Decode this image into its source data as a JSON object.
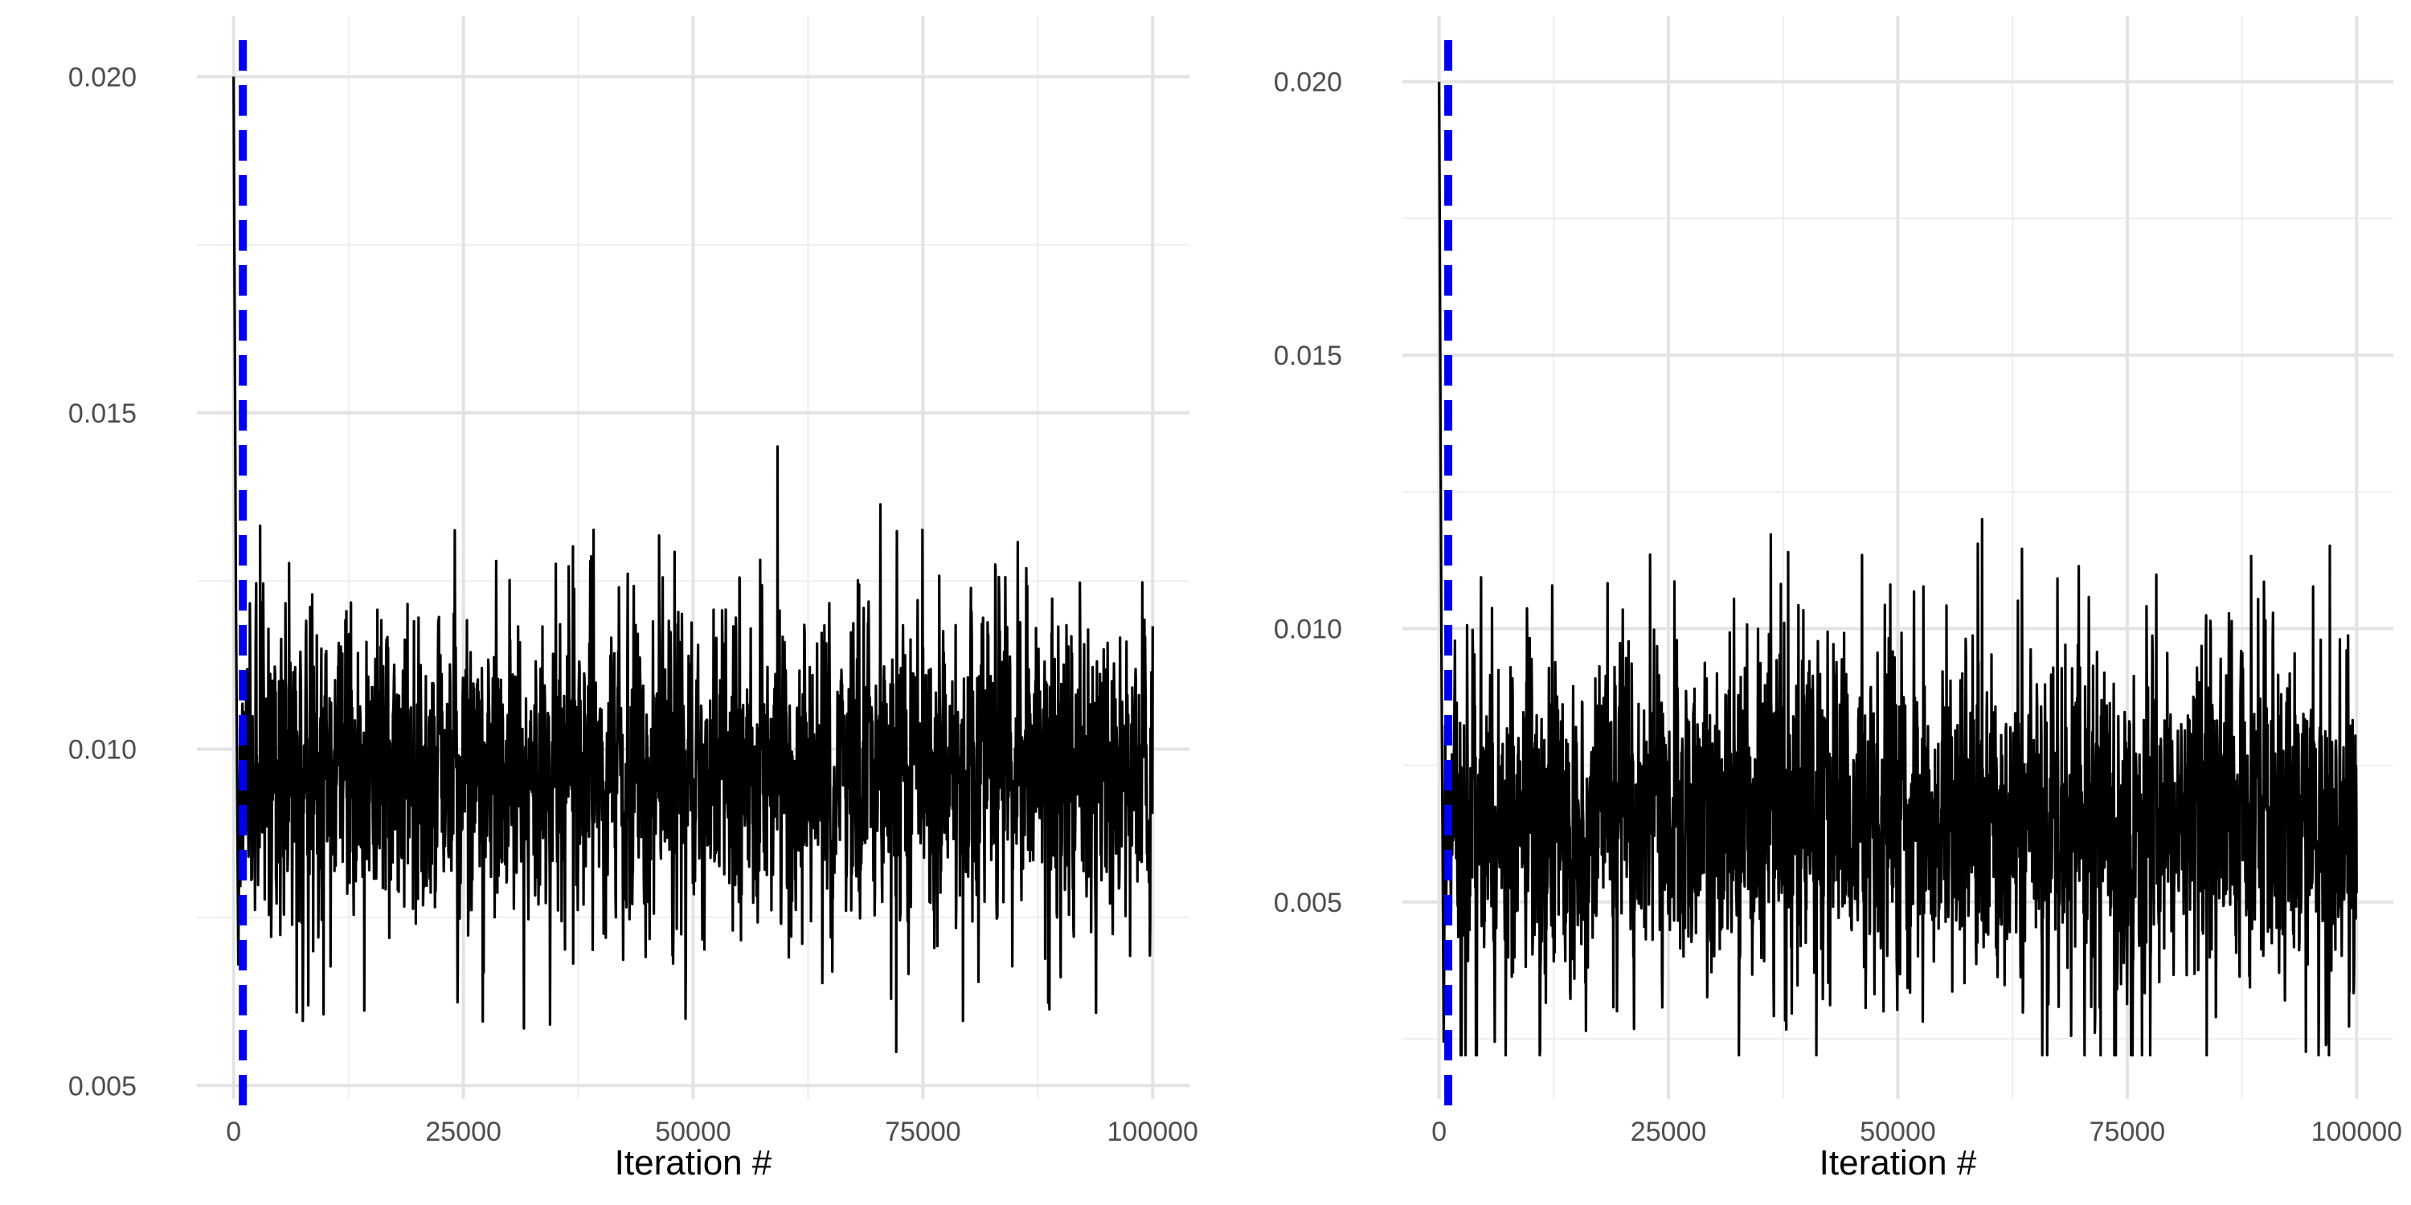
{
  "colors": {
    "background": "#ffffff",
    "grid_major": "#e3e3e3",
    "grid_minor": "#efefef",
    "trace": "#000000",
    "burnin_line": "#0000ee",
    "tick_text": "#4d4d4d",
    "axis_title": "#000000"
  },
  "chart_data": [
    {
      "type": "line",
      "xlabel": "Iteration #",
      "ylabel": "",
      "xlim": [
        -4000,
        104000
      ],
      "ylim": [
        0.0048,
        0.0209
      ],
      "x_ticks": [
        0,
        25000,
        50000,
        75000,
        100000
      ],
      "x_tick_labels": [
        "0",
        "25000",
        "50000",
        "75000",
        "100000"
      ],
      "y_ticks": [
        0.005,
        0.01,
        0.015,
        0.02
      ],
      "y_tick_labels": [
        "0.005",
        "0.010",
        "0.015",
        "0.020"
      ],
      "grid": true,
      "burnin_x": 1000,
      "series": [
        {
          "iterations": 100000,
          "start_value": 0.02,
          "mean": 0.0097,
          "typical_range": [
            0.0078,
            0.0118
          ],
          "max": 0.0145,
          "min": 0.0055
        }
      ]
    },
    {
      "type": "line",
      "xlabel": "Iteration #",
      "ylabel": "",
      "xlim": [
        -4000,
        104000
      ],
      "ylim": [
        0.0014,
        0.0212
      ],
      "x_ticks": [
        0,
        25000,
        50000,
        75000,
        100000
      ],
      "x_tick_labels": [
        "0",
        "25000",
        "50000",
        "75000",
        "100000"
      ],
      "y_ticks": [
        0.005,
        0.01,
        0.015,
        0.02
      ],
      "y_tick_labels": [
        "0.005",
        "0.010",
        "0.015",
        "0.020"
      ],
      "grid": true,
      "burnin_x": 1000,
      "series": [
        {
          "iterations": 100000,
          "start_value": 0.02,
          "mean": 0.0065,
          "typical_range": [
            0.0038,
            0.0092
          ],
          "max": 0.012,
          "min": 0.0022
        }
      ]
    }
  ]
}
